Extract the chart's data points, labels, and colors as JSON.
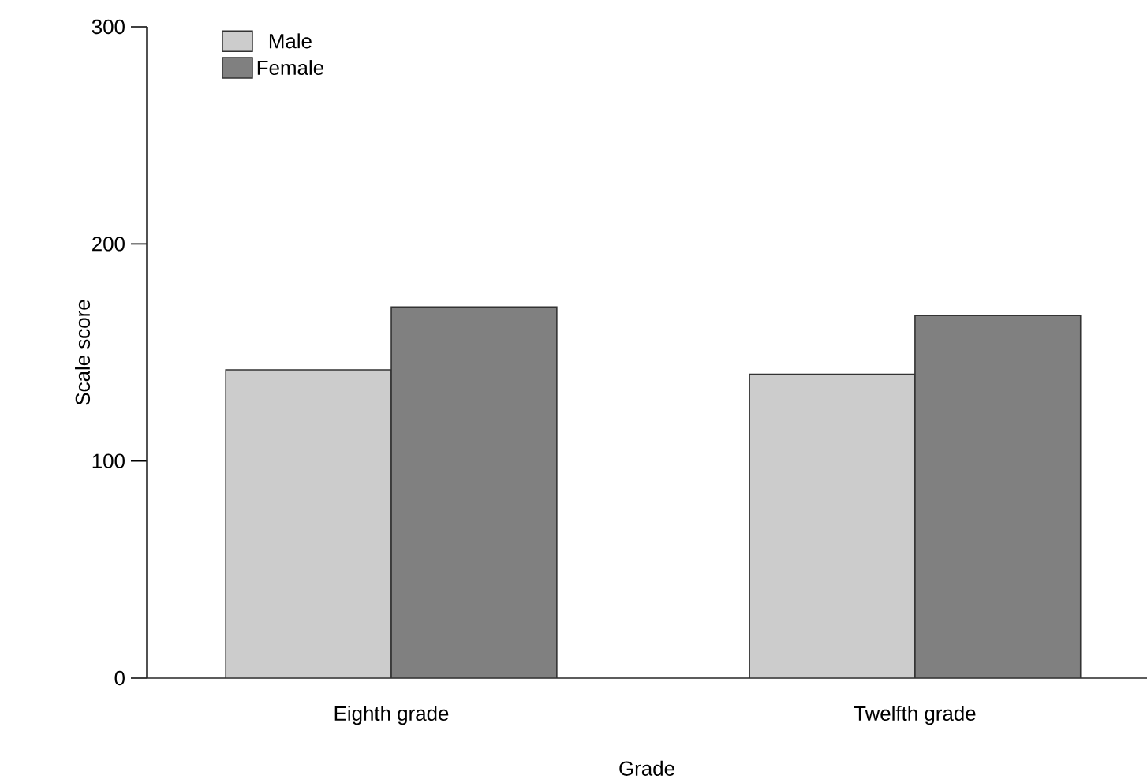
{
  "chart_data": {
    "type": "bar",
    "xlabel": "Grade",
    "ylabel": "Scale score",
    "categories": [
      "Eighth grade",
      "Twelfth grade"
    ],
    "series": [
      {
        "name": "Male",
        "color": "#cccccc",
        "values": [
          142,
          140
        ]
      },
      {
        "name": "Female",
        "color": "#808080",
        "values": [
          171,
          167
        ]
      }
    ],
    "ylim": [
      0,
      300
    ],
    "yticks": [
      0,
      100,
      200,
      300
    ],
    "legend": "top left",
    "grid": false
  }
}
